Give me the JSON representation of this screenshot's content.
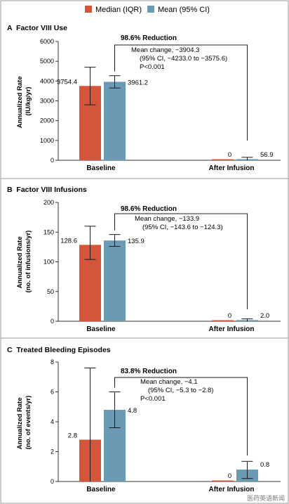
{
  "legend": [
    {
      "name": "Median (IQR)",
      "color": "#d4553a"
    },
    {
      "name": "Mean (95% CI)",
      "color": "#6b9bb4"
    }
  ],
  "watermark": "医药英语新闻",
  "chart_data": [
    {
      "type": "bar",
      "title": "A  Factor VIII Use",
      "ylabel_lines": [
        "Annualized Rate",
        "(IU/kg/yr)"
      ],
      "ylim": [
        0,
        6000
      ],
      "yticks": [
        "0",
        "1000",
        "2000",
        "3000",
        "4000",
        "5000",
        "6000"
      ],
      "categories": [
        "Baseline",
        "After Infusion"
      ],
      "series": [
        {
          "name": "Median (IQR)",
          "values": [
            3754.4,
            0
          ],
          "err_low": [
            2800,
            0
          ],
          "err_high": [
            4700,
            0
          ],
          "labels": [
            "3754.4",
            "0"
          ]
        },
        {
          "name": "Mean (95% CI)",
          "values": [
            3961.2,
            56.9
          ],
          "err_low": [
            3650,
            0
          ],
          "err_high": [
            4270,
            150
          ],
          "labels": [
            "3961.2",
            "56.9"
          ]
        }
      ],
      "reduction": "98.6% Reduction",
      "annotation": [
        "Mean change, −3904.3",
        "(95% CI, −4233.0 to −3575.6)",
        "P<0.001"
      ]
    },
    {
      "type": "bar",
      "title": "B  Factor VIII Infusions",
      "ylabel_lines": [
        "Annualized Rate",
        "(no. of infusions/yr)"
      ],
      "ylim": [
        0,
        200
      ],
      "yticks": [
        "0",
        "50",
        "100",
        "150",
        "200"
      ],
      "categories": [
        "Baseline",
        "After Infusion"
      ],
      "series": [
        {
          "name": "Median (IQR)",
          "values": [
            128.6,
            0
          ],
          "err_low": [
            104,
            0
          ],
          "err_high": [
            160,
            0
          ],
          "labels": [
            "128.6",
            "0"
          ]
        },
        {
          "name": "Mean (95% CI)",
          "values": [
            135.9,
            2.0
          ],
          "err_low": [
            126,
            0
          ],
          "err_high": [
            146,
            4
          ],
          "labels": [
            "135.9",
            "2.0"
          ]
        }
      ],
      "reduction": "98.6% Reduction",
      "annotation": [
        "Mean change, −133.9",
        "(95% CI, −143.6 to −124.3)"
      ]
    },
    {
      "type": "bar",
      "title": "C  Treated Bleeding Episodes",
      "ylabel_lines": [
        "Annualized Rate",
        "(no. of events/yr)"
      ],
      "ylim": [
        0,
        8
      ],
      "yticks": [
        "0",
        "2",
        "4",
        "6",
        "8"
      ],
      "categories": [
        "Baseline",
        "After Infusion"
      ],
      "series": [
        {
          "name": "Median (IQR)",
          "values": [
            2.8,
            0
          ],
          "err_low": [
            0,
            0
          ],
          "err_high": [
            7.6,
            0
          ],
          "labels": [
            "2.8",
            "0"
          ]
        },
        {
          "name": "Mean (95% CI)",
          "values": [
            4.8,
            0.8
          ],
          "err_low": [
            3.6,
            0.2
          ],
          "err_high": [
            6.0,
            1.35
          ],
          "labels": [
            "4.8",
            "0.8"
          ]
        }
      ],
      "reduction": "83.8% Reduction",
      "annotation": [
        "Mean change, −4.1",
        "(95% CI, −5.3 to −2.8)",
        "P<0.001"
      ]
    }
  ]
}
